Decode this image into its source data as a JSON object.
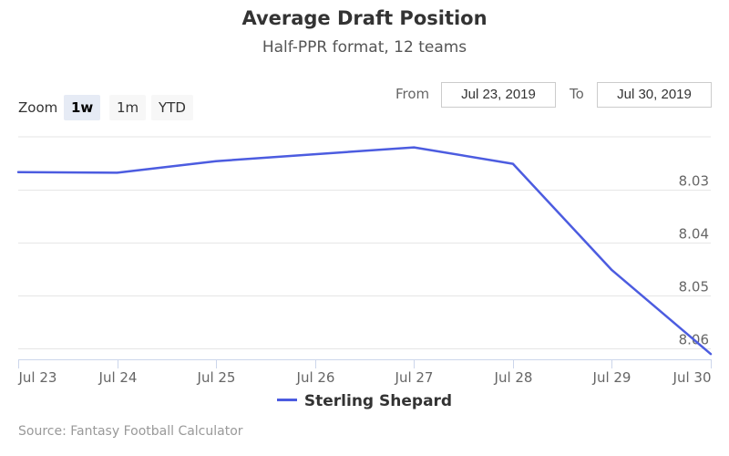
{
  "header": {
    "title": "Average Draft Position",
    "subtitle": "Half-PPR format, 12 teams"
  },
  "zoom": {
    "label": "Zoom",
    "buttons": [
      "1w",
      "1m",
      "YTD"
    ],
    "active": "1w"
  },
  "range": {
    "from_label": "From",
    "from_value": "Jul 23, 2019",
    "to_label": "To",
    "to_value": "Jul 30, 2019"
  },
  "legend": {
    "label": "Sterling Shepard"
  },
  "source": "Source: Fantasy Football Calculator",
  "colors": {
    "series": "#4c5ce0",
    "grid": "#e6e6e6"
  },
  "chart_data": {
    "type": "line",
    "title": "Average Draft Position",
    "subtitle": "Half-PPR format, 12 teams",
    "x": [
      "Jul 23",
      "Jul 24",
      "Jul 25",
      "Jul 26",
      "Jul 27",
      "Jul 28",
      "Jul 29",
      "Jul 30"
    ],
    "series": [
      {
        "name": "Sterling Shepard",
        "values": [
          8.0267,
          8.0268,
          8.0246,
          8.0233,
          8.022,
          8.0251,
          8.0452,
          8.0611
        ]
      }
    ],
    "ylim": [
      8.02,
      8.0621
    ],
    "y_reversed": true,
    "y_ticks": [
      8.03,
      8.04,
      8.05,
      8.06
    ],
    "grid": true,
    "legend_position": "bottom-center"
  }
}
